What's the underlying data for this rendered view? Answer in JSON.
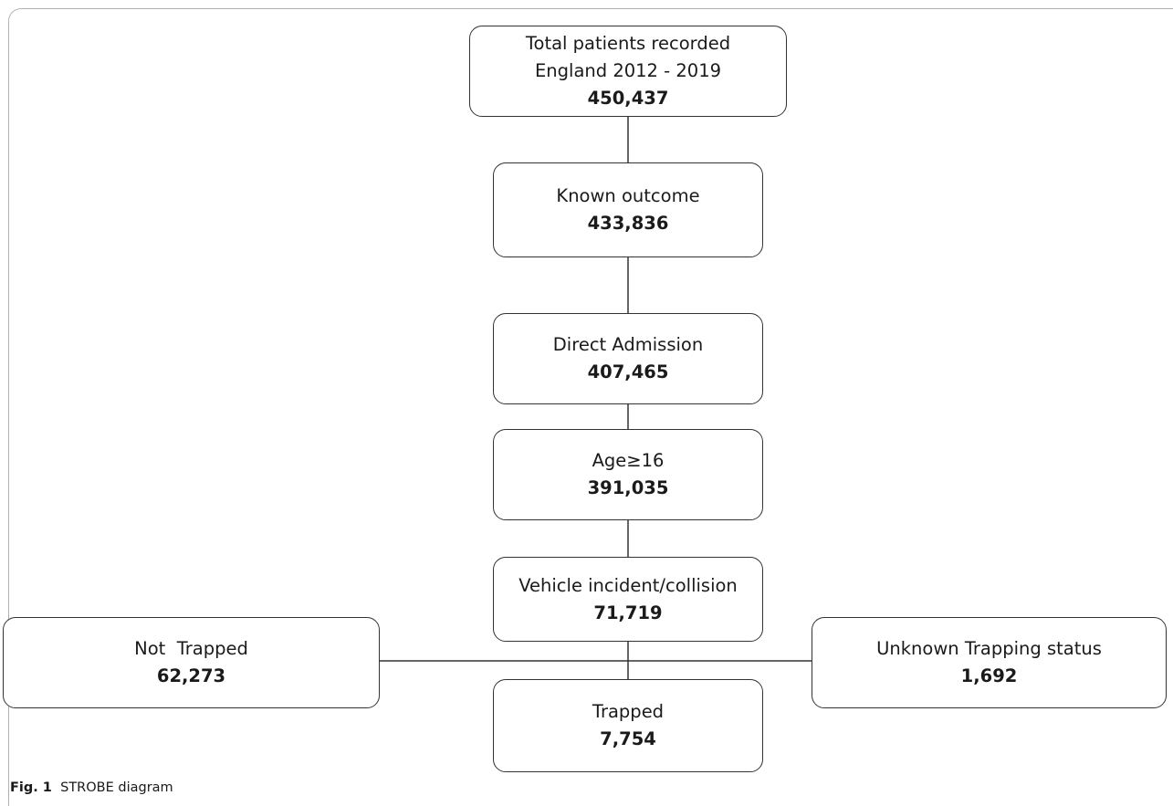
{
  "boxes": {
    "total": {
      "line1": "Total patients recorded",
      "line2": "England 2012 - 2019",
      "count": "450,437"
    },
    "known_outcome": {
      "line1": "Known outcome",
      "count": "433,836"
    },
    "direct_admission": {
      "line1": "Direct Admission",
      "count": "407,465"
    },
    "age": {
      "line1": "Age≥16",
      "count": "391,035"
    },
    "vehicle": {
      "line1": "Vehicle incident/collision",
      "count": "71,719"
    },
    "not_trapped": {
      "line1": "Not  Trapped",
      "count": "62,273"
    },
    "trapped": {
      "line1": "Trapped",
      "count": "7,754"
    },
    "unknown": {
      "line1": "Unknown Trapping status",
      "count": "1,692"
    }
  },
  "caption": {
    "label": "Fig. 1",
    "text": "STROBE diagram"
  },
  "colors": {
    "border": "#333333",
    "frame": "#b3b3b3",
    "text": "#1a1a1a"
  }
}
